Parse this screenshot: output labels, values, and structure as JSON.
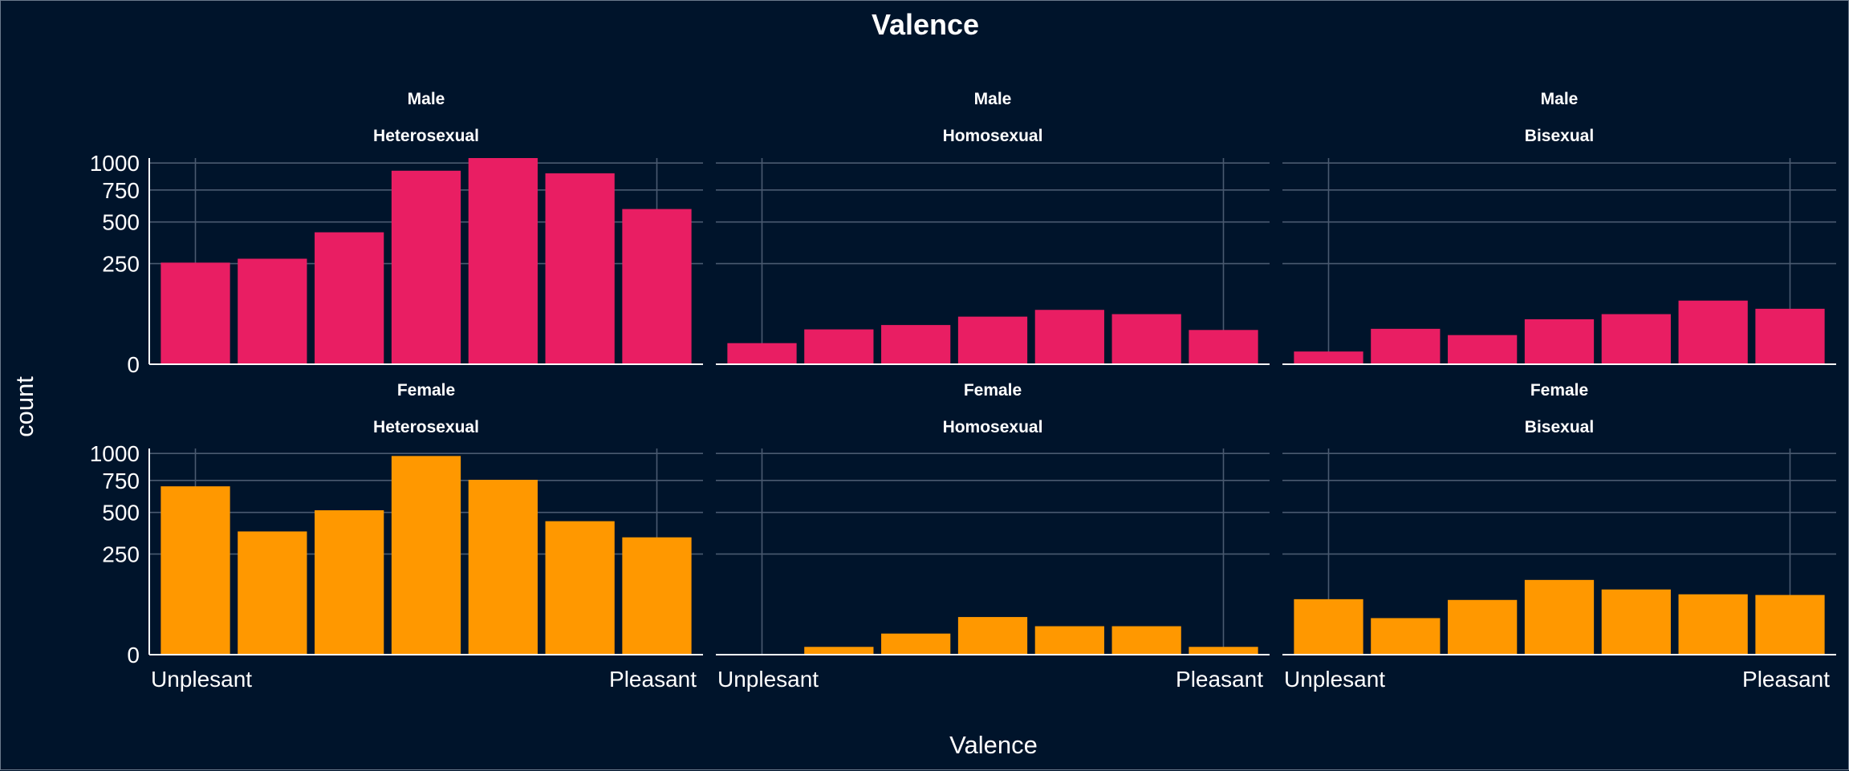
{
  "chart_data": {
    "type": "bar",
    "title": "Valence",
    "xlabel": "Valence",
    "ylabel": "count",
    "x_tick_labels": [
      "Unplesant",
      "Pleasant"
    ],
    "y_ticks": [
      0,
      250,
      500,
      750,
      1000
    ],
    "y_scale": "sqrt",
    "ylim": [
      0,
      1050
    ],
    "grid": true,
    "colors": {
      "background": "#00142b",
      "male": "#e91e63",
      "female": "#ff9800",
      "grid": "#4a5a70",
      "text": "#ffffff"
    },
    "panels": [
      {
        "row_label": "Male",
        "col_label": "Heterosexual",
        "values": [
          255,
          275,
          430,
          925,
          1050,
          900,
          595
        ]
      },
      {
        "row_label": "Male",
        "col_label": "Homosexual",
        "values": [
          11,
          30,
          38,
          56,
          73,
          62,
          29
        ]
      },
      {
        "row_label": "Male",
        "col_label": "Bisexual",
        "values": [
          4,
          31,
          21,
          50,
          62,
          100,
          76
        ]
      },
      {
        "row_label": "Female",
        "col_label": "Heterosexual",
        "values": [
          700,
          375,
          515,
          975,
          755,
          440,
          340
        ]
      },
      {
        "row_label": "Female",
        "col_label": "Homosexual",
        "values": [
          0,
          1.5,
          11,
          35,
          20,
          20,
          1.5
        ]
      },
      {
        "row_label": "Female",
        "col_label": "Bisexual",
        "values": [
          76,
          33,
          74,
          138,
          105,
          90,
          88
        ]
      }
    ]
  }
}
